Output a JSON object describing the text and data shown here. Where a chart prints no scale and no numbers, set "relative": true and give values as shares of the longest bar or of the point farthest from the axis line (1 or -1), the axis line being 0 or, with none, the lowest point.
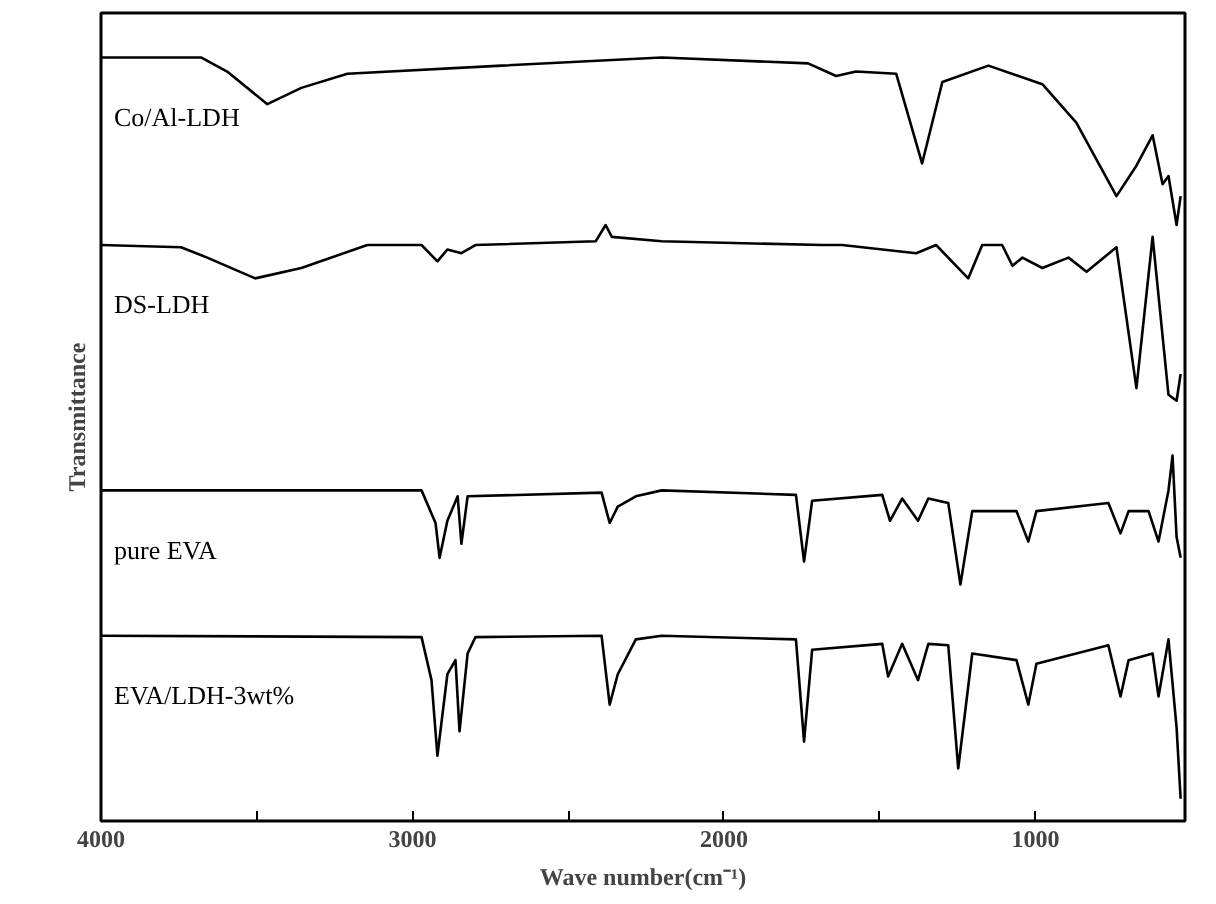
{
  "chart_data": {
    "type": "line",
    "relative": true,
    "xlabel": "Wave number(cm⁻¹)",
    "ylabel": "Transmittance",
    "xlim": [
      4000,
      520
    ],
    "xticks": [
      4000,
      {
        "value": 3500,
        "label": null
      },
      3000,
      {
        "value": 2500,
        "label": null
      },
      2000,
      {
        "value": 1500,
        "label": null
      },
      1000
    ],
    "grid": false,
    "tick_labels": "x",
    "marker": "none",
    "line_style": "solid",
    "series": [
      {
        "name": "Co/Al-LDH",
        "color": "#000000",
        "x": [
          4000,
          3679,
          3595,
          3466,
          3357,
          3209,
          2714,
          2200,
          1730,
          1640,
          1576,
          1447,
          1364,
          1299,
          1151,
          978,
          869,
          740,
          676,
          624,
          592,
          573,
          547,
          534
        ],
        "values": [
          1.0,
          1.0,
          0.981,
          0.937,
          0.959,
          0.978,
          0.989,
          1.0,
          0.992,
          0.975,
          0.981,
          0.978,
          0.857,
          0.967,
          0.989,
          0.964,
          0.912,
          0.813,
          0.854,
          0.895,
          0.829,
          0.84,
          0.774,
          0.813
        ]
      },
      {
        "name": "DS-LDH",
        "color": "#000000",
        "x": [
          4000,
          3743,
          3659,
          3505,
          3357,
          3145,
          2971,
          2920,
          2888,
          2843,
          2798,
          2412,
          2380,
          2360,
          2200,
          1685,
          1621,
          1383,
          1319,
          1216,
          1171,
          1107,
          1074,
          1042,
          978,
          894,
          836,
          740,
          676,
          624,
          573,
          547,
          534
        ],
        "values": [
          0.747,
          0.744,
          0.73,
          0.702,
          0.716,
          0.747,
          0.747,
          0.725,
          0.741,
          0.736,
          0.747,
          0.752,
          0.774,
          0.758,
          0.752,
          0.747,
          0.747,
          0.736,
          0.747,
          0.702,
          0.747,
          0.747,
          0.719,
          0.73,
          0.716,
          0.73,
          0.711,
          0.744,
          0.554,
          0.758,
          0.545,
          0.537,
          0.573
        ]
      },
      {
        "name": "pure EVA",
        "color": "#000000",
        "x": [
          4000,
          2971,
          2926,
          2913,
          2888,
          2855,
          2843,
          2823,
          2393,
          2367,
          2341,
          2283,
          2200,
          1769,
          1743,
          1717,
          1492,
          1467,
          1428,
          1377,
          1344,
          1280,
          1241,
          1203,
          1061,
          1023,
          997,
          766,
          727,
          701,
          637,
          605,
          573,
          560,
          547,
          534
        ],
        "values": [
          0.416,
          0.416,
          0.372,
          0.325,
          0.375,
          0.408,
          0.344,
          0.408,
          0.413,
          0.372,
          0.394,
          0.408,
          0.416,
          0.41,
          0.32,
          0.402,
          0.41,
          0.375,
          0.405,
          0.375,
          0.405,
          0.399,
          0.289,
          0.388,
          0.388,
          0.347,
          0.388,
          0.399,
          0.358,
          0.388,
          0.388,
          0.347,
          0.416,
          0.463,
          0.353,
          0.325
        ]
      },
      {
        "name": "EVA/LDH-3wt%",
        "color": "#000000",
        "x": [
          4000,
          2971,
          2939,
          2920,
          2888,
          2862,
          2849,
          2823,
          2798,
          2393,
          2367,
          2341,
          2283,
          2200,
          1769,
          1743,
          1717,
          1492,
          1473,
          1428,
          1377,
          1344,
          1280,
          1248,
          1203,
          1061,
          1023,
          997,
          766,
          727,
          701,
          624,
          605,
          573,
          547,
          534
        ],
        "values": [
          0.22,
          0.218,
          0.16,
          0.058,
          0.168,
          0.187,
          0.091,
          0.196,
          0.218,
          0.22,
          0.127,
          0.168,
          0.215,
          0.22,
          0.215,
          0.077,
          0.201,
          0.209,
          0.165,
          0.209,
          0.16,
          0.209,
          0.207,
          0.041,
          0.196,
          0.187,
          0.127,
          0.182,
          0.207,
          0.138,
          0.187,
          0.196,
          0.138,
          0.215,
          0.096,
          0.0
        ]
      }
    ]
  }
}
